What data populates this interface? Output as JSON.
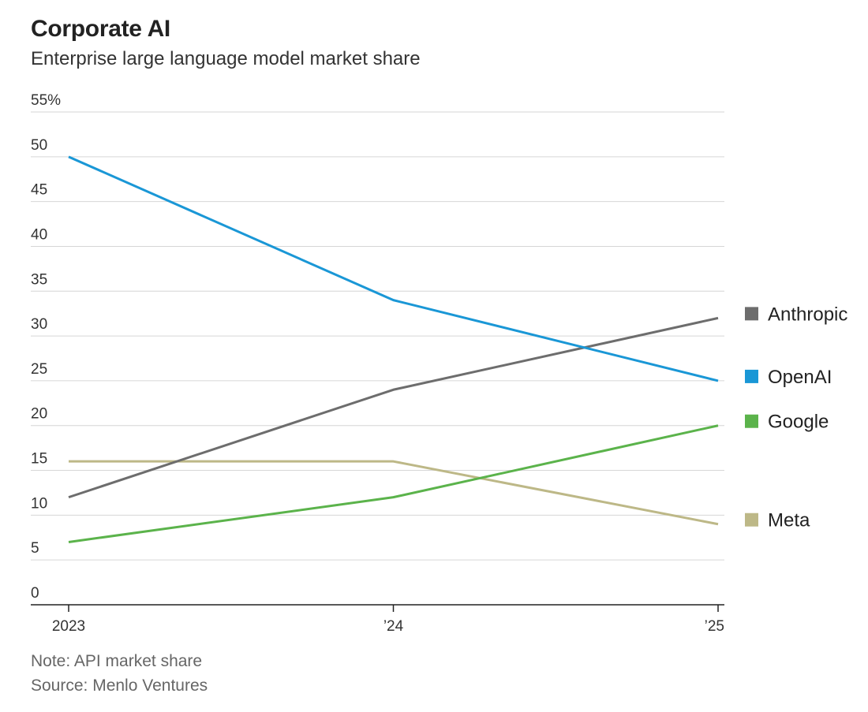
{
  "chart_data": {
    "type": "line",
    "title": "Corporate AI",
    "subtitle": "Enterprise large language model market share",
    "x": [
      "2023",
      "’24",
      "’25"
    ],
    "ylim": [
      0,
      55
    ],
    "yticks": [
      0,
      5,
      10,
      15,
      20,
      25,
      30,
      35,
      40,
      45,
      50,
      55
    ],
    "ytick_labels": [
      "0",
      "5",
      "10",
      "15",
      "20",
      "25",
      "30",
      "35",
      "40",
      "45",
      "50",
      "55%"
    ],
    "grid": true,
    "legend_position": "right",
    "series": [
      {
        "name": "Anthropic",
        "color": "#6d6d6d",
        "values": [
          12,
          24,
          32
        ]
      },
      {
        "name": "OpenAI",
        "color": "#1a97d6",
        "values": [
          50,
          34,
          25
        ]
      },
      {
        "name": "Google",
        "color": "#5bb34b",
        "values": [
          7,
          12,
          20
        ]
      },
      {
        "name": "Meta",
        "color": "#bdb887",
        "values": [
          16,
          16,
          9
        ]
      }
    ],
    "legend_order": [
      "Anthropic",
      "OpenAI",
      "Google",
      "Meta"
    ],
    "note": "Note: API market share",
    "source": "Source: Menlo Ventures"
  }
}
